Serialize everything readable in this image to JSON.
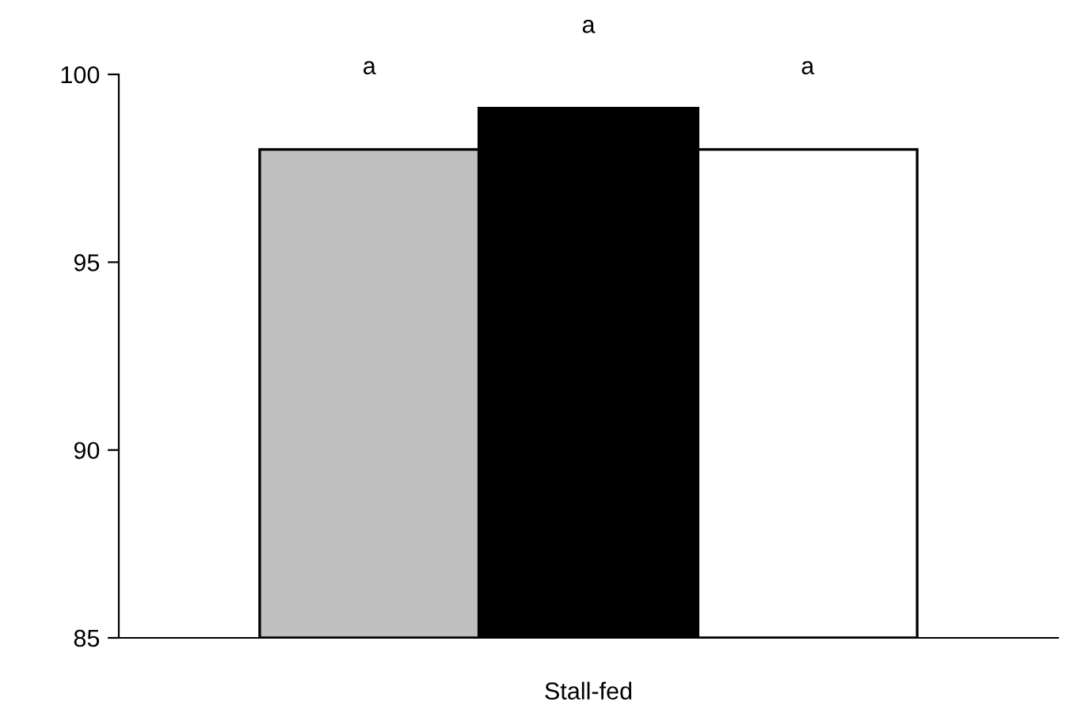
{
  "chart_data": {
    "type": "bar",
    "categories": [
      "Stall-fed"
    ],
    "series": [
      {
        "color": "#c0c0c0",
        "values": [
          98.0
        ]
      },
      {
        "color": "#000000",
        "values": [
          99.1
        ]
      },
      {
        "color": "#ffffff",
        "values": [
          98.0
        ]
      }
    ],
    "ylim": [
      85,
      100
    ],
    "yticks": [
      85,
      90,
      95,
      100
    ],
    "grid": false,
    "legend": false,
    "annotations": [
      "a",
      "a",
      "a"
    ]
  }
}
